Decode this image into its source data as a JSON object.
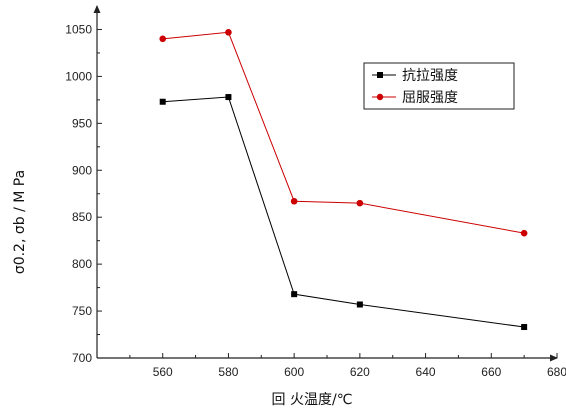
{
  "chart_data": {
    "type": "line",
    "xlabel": "回 火温度/℃",
    "ylabel": "σ0.2, σb / M Pa",
    "xlim": [
      540,
      680
    ],
    "ylim": [
      700,
      1075
    ],
    "x_ticks": [
      560,
      580,
      600,
      620,
      640,
      660,
      680
    ],
    "y_ticks": [
      700,
      750,
      800,
      850,
      900,
      950,
      1000,
      1050
    ],
    "grid": false,
    "legend_position": "top-right",
    "series": [
      {
        "name": "抗拉强度",
        "color": "#000000",
        "marker": "square",
        "x": [
          560,
          580,
          600,
          620,
          670
        ],
        "values": [
          973,
          978,
          768,
          757,
          733
        ]
      },
      {
        "name": "屈服强度",
        "color": "#cc0000",
        "marker": "circle",
        "x": [
          560,
          580,
          600,
          620,
          670
        ],
        "values": [
          1040,
          1047,
          867,
          865,
          833
        ]
      }
    ]
  }
}
